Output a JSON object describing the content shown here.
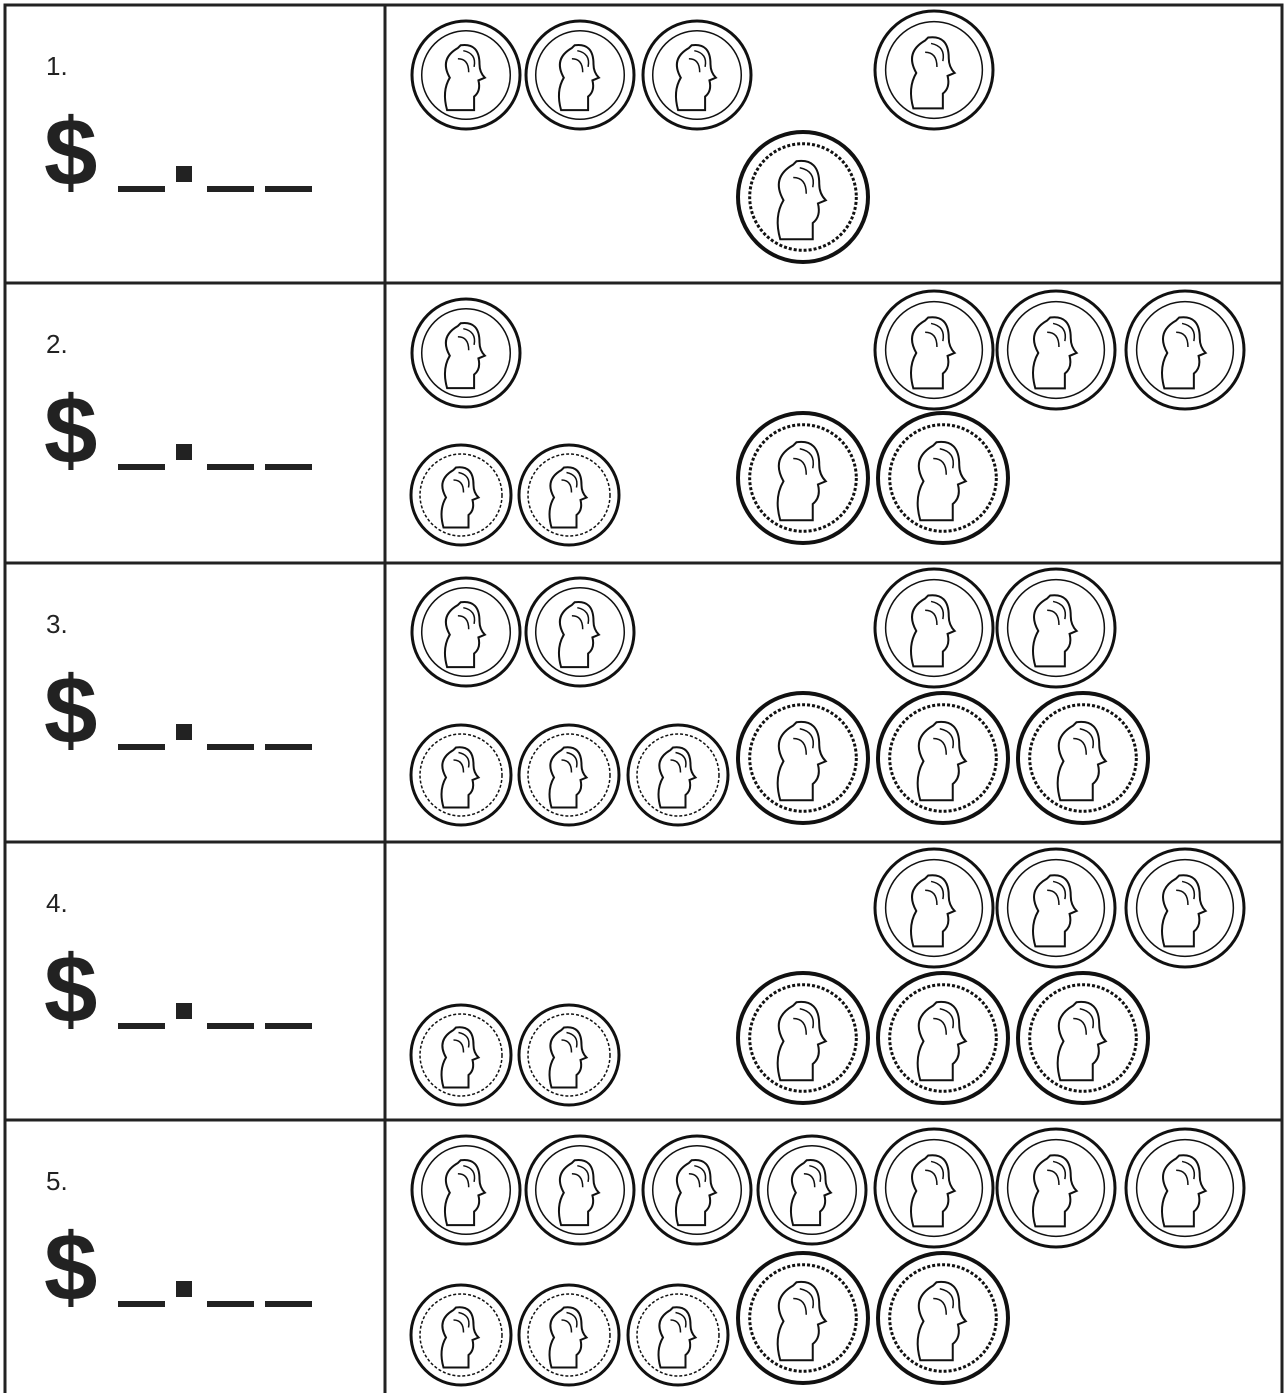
{
  "problems": [
    {
      "number": "1.",
      "currency": "$"
    },
    {
      "number": "2.",
      "currency": "$"
    },
    {
      "number": "3.",
      "currency": "$"
    },
    {
      "number": "4.",
      "currency": "$"
    },
    {
      "number": "5.",
      "currency": "$"
    }
  ]
}
